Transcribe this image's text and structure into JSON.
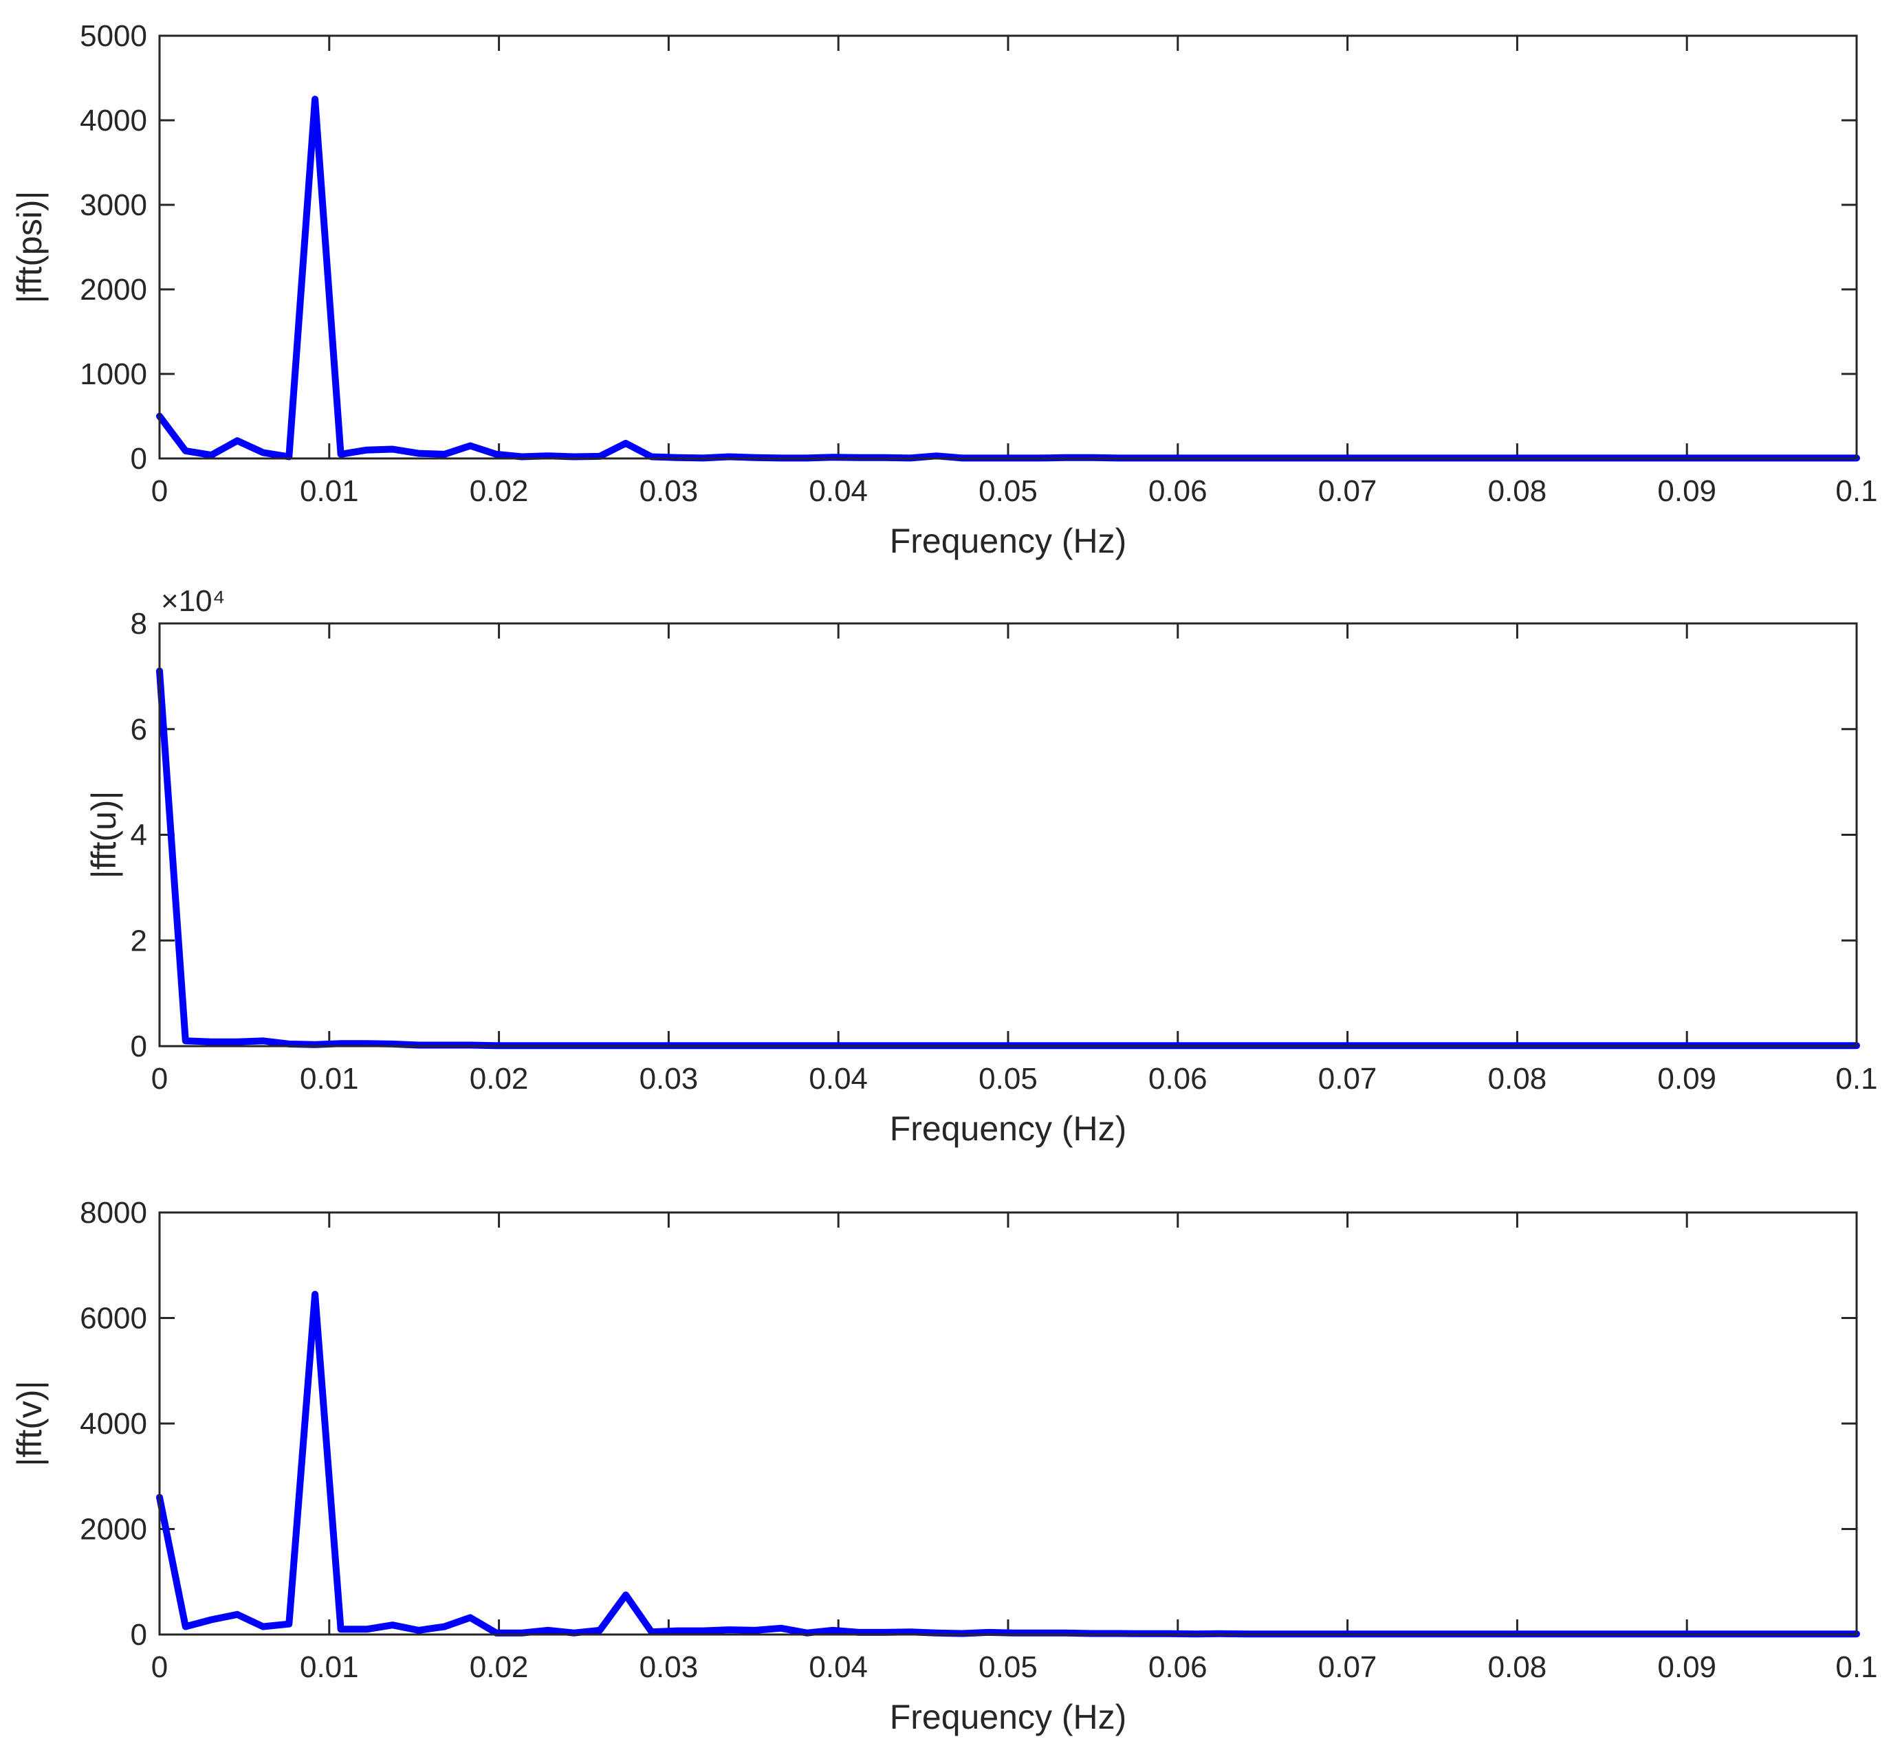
{
  "colors": {
    "series": "#0000ff",
    "axes": "#262626",
    "background": "#ffffff"
  },
  "chart_data": [
    {
      "type": "line",
      "xlabel": "Frequency (Hz)",
      "ylabel": "|fft(psi)|",
      "xlim": [
        0,
        0.1
      ],
      "ylim": [
        0,
        5000
      ],
      "xticks": [
        0,
        0.01,
        0.02,
        0.03,
        0.04,
        0.05,
        0.06,
        0.07,
        0.08,
        0.09,
        0.1
      ],
      "xtick_labels": [
        "0",
        "0.01",
        "0.02",
        "0.03",
        "0.04",
        "0.05",
        "0.06",
        "0.07",
        "0.08",
        "0.09",
        "0.1"
      ],
      "yticks": [
        0,
        1000,
        2000,
        3000,
        4000,
        5000
      ],
      "ytick_labels": [
        "0",
        "1000",
        "2000",
        "3000",
        "4000",
        "5000"
      ],
      "y_exponent": "",
      "grid": false,
      "series": [
        {
          "x": [
            0,
            0.00153,
            0.00305,
            0.00458,
            0.0061,
            0.00763,
            0.00916,
            0.01068,
            0.01221,
            0.01373,
            0.01526,
            0.01679,
            0.01831,
            0.01984,
            0.02136,
            0.02289,
            0.02442,
            0.02594,
            0.02747,
            0.02899,
            0.03052,
            0.03204,
            0.03357,
            0.0351,
            0.03662,
            0.03815,
            0.03967,
            0.0412,
            0.04272,
            0.04425,
            0.04578,
            0.0473,
            0.04883,
            0.05035,
            0.05188,
            0.05341,
            0.05493,
            0.05646,
            0.05798,
            0.05951,
            0.06103,
            0.06256,
            0.06409,
            0.06561,
            0.06714,
            0.06866,
            0.07019,
            0.07172,
            0.07324,
            0.07477,
            0.07629,
            0.07782,
            0.07934,
            0.08087,
            0.0824,
            0.08392,
            0.08545,
            0.08697,
            0.0885,
            0.09003,
            0.09155,
            0.09308,
            0.0946,
            0.09613,
            0.09765,
            0.09918,
            0.1
          ],
          "y": [
            500,
            90,
            40,
            210,
            70,
            20,
            4250,
            50,
            100,
            110,
            60,
            50,
            150,
            50,
            20,
            30,
            20,
            25,
            180,
            20,
            10,
            5,
            20,
            10,
            5,
            5,
            15,
            10,
            10,
            5,
            30,
            5,
            5,
            5,
            5,
            10,
            10,
            5,
            5,
            5,
            5,
            5,
            5,
            5,
            5,
            5,
            5,
            5,
            5,
            5,
            5,
            5,
            5,
            5,
            5,
            5,
            5,
            5,
            5,
            5,
            5,
            5,
            5,
            5,
            5,
            5,
            5
          ]
        }
      ]
    },
    {
      "type": "line",
      "xlabel": "Frequency (Hz)",
      "ylabel": "|fft(u)|",
      "xlim": [
        0,
        0.1
      ],
      "ylim": [
        0,
        8
      ],
      "xticks": [
        0,
        0.01,
        0.02,
        0.03,
        0.04,
        0.05,
        0.06,
        0.07,
        0.08,
        0.09,
        0.1
      ],
      "xtick_labels": [
        "0",
        "0.01",
        "0.02",
        "0.03",
        "0.04",
        "0.05",
        "0.06",
        "0.07",
        "0.08",
        "0.09",
        "0.1"
      ],
      "yticks": [
        0,
        2,
        4,
        6,
        8
      ],
      "ytick_labels": [
        "0",
        "2",
        "4",
        "6",
        "8"
      ],
      "y_exponent": "×10⁴",
      "grid": false,
      "series": [
        {
          "x": [
            0,
            0.00153,
            0.00305,
            0.00458,
            0.0061,
            0.00763,
            0.00916,
            0.01068,
            0.01221,
            0.01373,
            0.01526,
            0.01679,
            0.01831,
            0.01984,
            0.02136,
            0.02289,
            0.02442,
            0.02594,
            0.02747,
            0.02899,
            0.03052,
            0.03204,
            0.03357,
            0.0351,
            0.03662,
            0.03815,
            0.03967,
            0.0412,
            0.04272,
            0.04425,
            0.04578,
            0.0473,
            0.04883,
            0.05035,
            0.05188,
            0.05341,
            0.05493,
            0.05646,
            0.05798,
            0.05951,
            0.06103,
            0.06256,
            0.06409,
            0.06561,
            0.06714,
            0.06866,
            0.07019,
            0.07172,
            0.07324,
            0.07477,
            0.07629,
            0.07782,
            0.07934,
            0.08087,
            0.0824,
            0.08392,
            0.08545,
            0.08697,
            0.0885,
            0.09003,
            0.09155,
            0.09308,
            0.0946,
            0.09613,
            0.09765,
            0.09918,
            0.1
          ],
          "y": [
            7.1,
            0.1,
            0.08,
            0.08,
            0.1,
            0.04,
            0.03,
            0.05,
            0.05,
            0.04,
            0.02,
            0.02,
            0.02,
            0.01,
            0.01,
            0.01,
            0.01,
            0.01,
            0.01,
            0.01,
            0.01,
            0.01,
            0.01,
            0.01,
            0.01,
            0.01,
            0.01,
            0.01,
            0.01,
            0.01,
            0.01,
            0.01,
            0.01,
            0.01,
            0.01,
            0.01,
            0.01,
            0.01,
            0.01,
            0.01,
            0.01,
            0.01,
            0.01,
            0.01,
            0.01,
            0.01,
            0.01,
            0.01,
            0.01,
            0.01,
            0.01,
            0.01,
            0.01,
            0.01,
            0.01,
            0.01,
            0.01,
            0.01,
            0.01,
            0.01,
            0.01,
            0.01,
            0.01,
            0.01,
            0.01,
            0.01,
            0.01
          ]
        }
      ]
    },
    {
      "type": "line",
      "xlabel": "Frequency (Hz)",
      "ylabel": "|fft(v)|",
      "xlim": [
        0,
        0.1
      ],
      "ylim": [
        0,
        8000
      ],
      "xticks": [
        0,
        0.01,
        0.02,
        0.03,
        0.04,
        0.05,
        0.06,
        0.07,
        0.08,
        0.09,
        0.1
      ],
      "xtick_labels": [
        "0",
        "0.01",
        "0.02",
        "0.03",
        "0.04",
        "0.05",
        "0.06",
        "0.07",
        "0.08",
        "0.09",
        "0.1"
      ],
      "yticks": [
        0,
        2000,
        4000,
        6000,
        8000
      ],
      "ytick_labels": [
        "0",
        "2000",
        "4000",
        "6000",
        "8000"
      ],
      "y_exponent": "",
      "grid": false,
      "series": [
        {
          "x": [
            0,
            0.00153,
            0.00305,
            0.00458,
            0.0061,
            0.00763,
            0.00916,
            0.01068,
            0.01221,
            0.01373,
            0.01526,
            0.01679,
            0.01831,
            0.01984,
            0.02136,
            0.02289,
            0.02442,
            0.02594,
            0.02747,
            0.02899,
            0.03052,
            0.03204,
            0.03357,
            0.0351,
            0.03662,
            0.03815,
            0.03967,
            0.0412,
            0.04272,
            0.04425,
            0.04578,
            0.0473,
            0.04883,
            0.05035,
            0.05188,
            0.05341,
            0.05493,
            0.05646,
            0.05798,
            0.05951,
            0.06103,
            0.06256,
            0.06409,
            0.06561,
            0.06714,
            0.06866,
            0.07019,
            0.07172,
            0.07324,
            0.07477,
            0.07629,
            0.07782,
            0.07934,
            0.08087,
            0.0824,
            0.08392,
            0.08545,
            0.08697,
            0.0885,
            0.09003,
            0.09155,
            0.09308,
            0.0946,
            0.09613,
            0.09765,
            0.09918,
            0.1
          ],
          "y": [
            2600,
            150,
            280,
            380,
            150,
            200,
            6450,
            100,
            100,
            180,
            80,
            150,
            320,
            30,
            30,
            80,
            30,
            80,
            750,
            50,
            70,
            70,
            90,
            80,
            120,
            30,
            80,
            40,
            40,
            50,
            30,
            20,
            40,
            30,
            30,
            30,
            20,
            20,
            15,
            15,
            10,
            15,
            10,
            10,
            10,
            10,
            10,
            10,
            10,
            10,
            10,
            10,
            10,
            10,
            10,
            10,
            10,
            10,
            10,
            10,
            10,
            10,
            10,
            10,
            10,
            10,
            10
          ]
        }
      ]
    }
  ]
}
